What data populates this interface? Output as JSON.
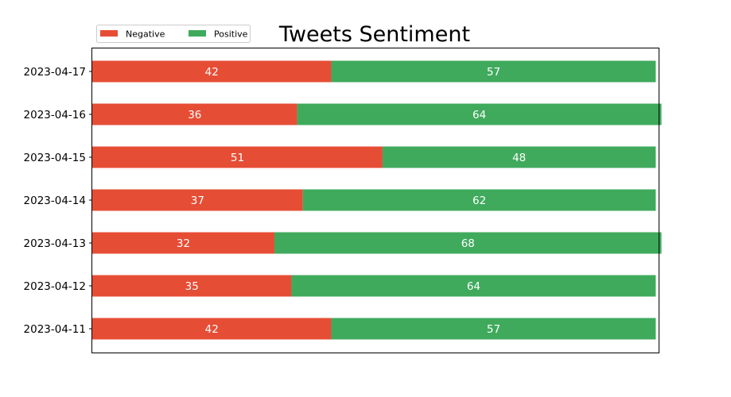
{
  "chart_data": {
    "type": "bar",
    "orientation": "horizontal",
    "stacked": true,
    "title": "Tweets Sentiment",
    "xlabel": "",
    "ylabel": "",
    "categories": [
      "2023-04-11",
      "2023-04-12",
      "2023-04-13",
      "2023-04-14",
      "2023-04-15",
      "2023-04-16",
      "2023-04-17"
    ],
    "series": [
      {
        "name": "Negative",
        "color": "#e64d35",
        "values": [
          42,
          35,
          32,
          37,
          51,
          36,
          42
        ]
      },
      {
        "name": "Positive",
        "color": "#3faa5c",
        "values": [
          57,
          64,
          68,
          62,
          48,
          64,
          57
        ]
      }
    ],
    "xlim": [
      0,
      99.5
    ],
    "x_ticks_visible": false,
    "grid": false,
    "legend_position": "top-left, above plot, two columns"
  }
}
